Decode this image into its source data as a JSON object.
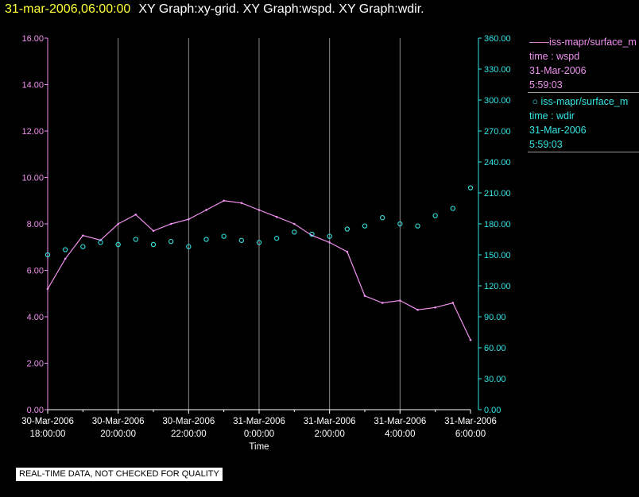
{
  "header": {
    "timestamp": "31-mar-2006,06:00:00",
    "titles": "XY Graph:xy-grid.  XY Graph:wspd.  XY Graph:wdir."
  },
  "legend": [
    {
      "label": "iss-mapr/surface_m",
      "line1": "time : wspd",
      "line2": "31-Mar-2006",
      "line3": "5:59:03",
      "color": "#f090f0",
      "marker": "line"
    },
    {
      "label": "iss-mapr/surface_m",
      "line1": "time : wdir",
      "line2": "31-Mar-2006",
      "line3": "5:59:03",
      "color": "#33e6e6",
      "marker": "circle"
    }
  ],
  "footer_note": "REAL-TIME DATA, NOT CHECKED FOR QUALITY",
  "chart_data": {
    "type": "line",
    "xlabel": "Time",
    "x_ticks": [
      {
        "date": "30-Mar-2006",
        "time": "18:00:00"
      },
      {
        "date": "30-Mar-2006",
        "time": "20:00:00"
      },
      {
        "date": "30-Mar-2006",
        "time": "22:00:00"
      },
      {
        "date": "31-Mar-2006",
        "time": "0:00:00"
      },
      {
        "date": "31-Mar-2006",
        "time": "2:00:00"
      },
      {
        "date": "31-Mar-2006",
        "time": "4:00:00"
      },
      {
        "date": "31-Mar-2006",
        "time": "6:00:00"
      }
    ],
    "xlim": [
      "30-Mar-2006 18:00",
      "31-Mar-2006 06:00"
    ],
    "y_left": {
      "ylim": [
        0,
        16
      ],
      "ticks": [
        "0.00",
        "2.00",
        "4.00",
        "6.00",
        "8.00",
        "10.00",
        "12.00",
        "14.00",
        "16.00"
      ],
      "color": "#f090f0"
    },
    "y_right": {
      "ylim": [
        0,
        360
      ],
      "ticks": [
        "0.00",
        "30.00",
        "60.00",
        "90.00",
        "120.00",
        "150.00",
        "180.00",
        "210.00",
        "240.00",
        "270.00",
        "300.00",
        "330.00",
        "360.00"
      ],
      "color": "#33e6e6"
    },
    "grid": "vertical lines at major time ticks",
    "series": [
      {
        "axis": "left",
        "style": "line",
        "color": "#f090f0",
        "x": [
          "30-Mar-2006 18:00",
          "18:30",
          "19:00",
          "19:30",
          "20:00",
          "20:30",
          "21:00",
          "21:30",
          "22:00",
          "22:30",
          "23:00",
          "23:30",
          "31-Mar-2006 00:00",
          "00:30",
          "01:00",
          "01:30",
          "02:00",
          "02:30",
          "03:00",
          "03:30",
          "04:00",
          "04:30",
          "05:00",
          "05:30",
          "06:00"
        ],
        "values": [
          5.2,
          6.5,
          7.5,
          7.3,
          8.0,
          8.4,
          7.7,
          8.0,
          8.2,
          8.6,
          9.0,
          8.9,
          8.6,
          8.3,
          8.0,
          7.5,
          7.2,
          6.8,
          4.9,
          4.6,
          4.7,
          4.3,
          4.4,
          4.6,
          3.0
        ]
      },
      {
        "axis": "right",
        "style": "circle",
        "color": "#33e6e6",
        "x": [
          "30-Mar-2006 18:00",
          "18:30",
          "19:00",
          "19:30",
          "20:00",
          "20:30",
          "21:00",
          "21:30",
          "22:00",
          "22:30",
          "23:00",
          "23:30",
          "31-Mar-2006 00:00",
          "00:30",
          "01:00",
          "01:30",
          "02:00",
          "02:30",
          "03:00",
          "03:30",
          "04:00",
          "04:30",
          "05:00",
          "05:30",
          "06:00"
        ],
        "values": [
          150,
          155,
          158,
          162,
          160,
          165,
          160,
          163,
          158,
          165,
          168,
          164,
          162,
          166,
          172,
          170,
          168,
          175,
          178,
          186,
          180,
          178,
          188,
          195,
          215
        ]
      }
    ]
  }
}
